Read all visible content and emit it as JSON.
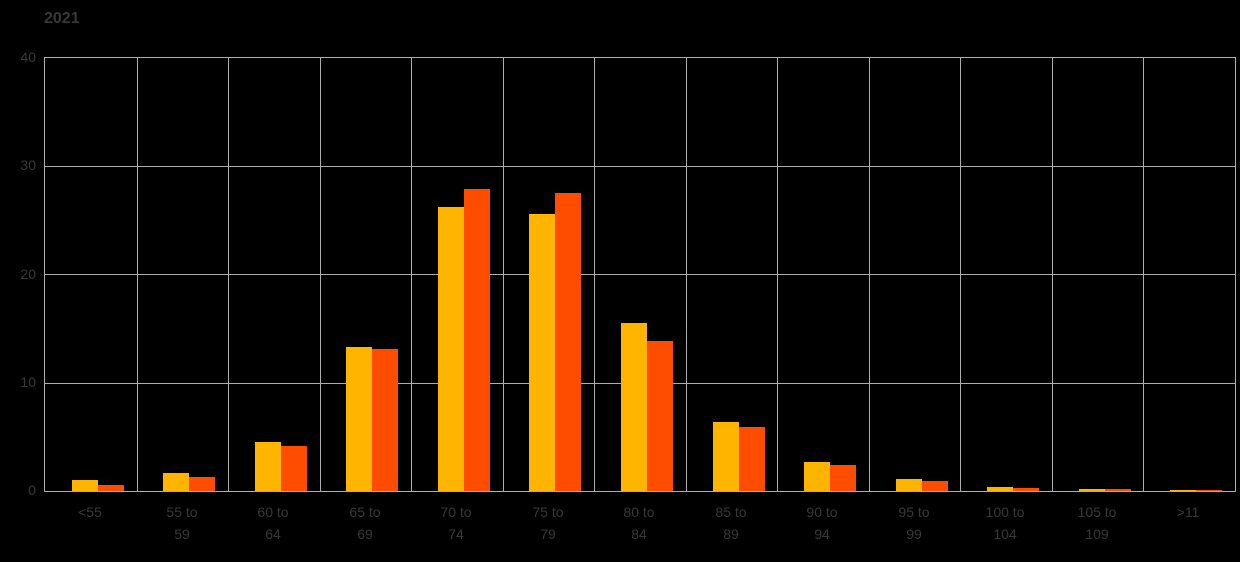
{
  "title": "2021",
  "colors": {
    "background": "#000000",
    "grid": "#ADADAD",
    "text": "#383838",
    "bar_yellow": "#FFB400",
    "bar_orange": "#FF4D00"
  },
  "chart_data": {
    "type": "bar",
    "title": "2021",
    "categories": [
      "<55",
      "55 to 59",
      "60 to 64",
      "65 to 69",
      "70 to 74",
      "75 to 79",
      "80 to 84",
      "85 to 89",
      "90 to 94",
      "95 to 99",
      "100 to 104",
      "105 to 109",
      ">11"
    ],
    "series": [
      {
        "name": "yellow",
        "color": "#FFB400",
        "values": [
          1.0,
          1.7,
          4.5,
          13.3,
          26.2,
          25.6,
          15.5,
          6.4,
          2.7,
          1.1,
          0.35,
          0.15,
          0.05
        ]
      },
      {
        "name": "orange",
        "color": "#FF4D00",
        "values": [
          0.6,
          1.3,
          4.2,
          13.1,
          27.9,
          27.5,
          13.9,
          5.9,
          2.4,
          0.9,
          0.3,
          0.15,
          0.08
        ]
      }
    ],
    "xlabel": "",
    "ylabel": "",
    "ylim": [
      0,
      40
    ],
    "yticks": [
      0,
      10,
      20,
      30,
      40
    ],
    "grid": true,
    "legend_position": "none"
  }
}
